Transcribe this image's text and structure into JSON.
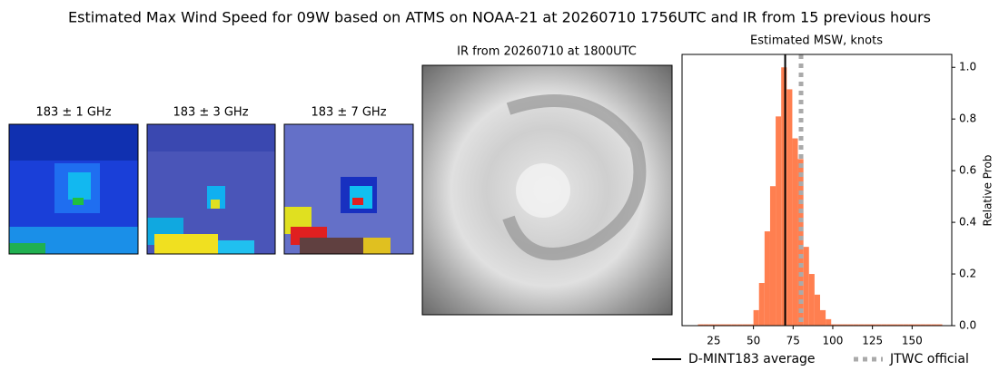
{
  "title": "Estimated Max Wind Speed for 09W based on ATMS on NOAA-21 at 20260710 1756UTC and IR from 15 previous hours",
  "panels": [
    {
      "title": "183 ± 1 GHz"
    },
    {
      "title": "183 ± 3 GHz"
    },
    {
      "title": "183 ± 7 GHz"
    }
  ],
  "ir_title": "IR from 20260710 at 1800UTC",
  "chart_data": {
    "type": "histogram",
    "title": "Estimated MSW, knots",
    "ylabel": "Relative Prob",
    "color": "#ff7f50",
    "bins": [
      15,
      18.5,
      22,
      25.5,
      29,
      32.5,
      36,
      39.5,
      43,
      46.5,
      50,
      53.5,
      57,
      60.5,
      64,
      67.5,
      71,
      74.5,
      78,
      81.5,
      85,
      88.5,
      92,
      95.5,
      99,
      102.5,
      106,
      109.5,
      113,
      116.5,
      120,
      123.5,
      127,
      130.5,
      134,
      137.5,
      141,
      144.5,
      148,
      151.5,
      155,
      158.5,
      162,
      165.5,
      169
    ],
    "values": [
      0.005,
      0.005,
      0.005,
      0.005,
      0.005,
      0.005,
      0.005,
      0.005,
      0.005,
      0.005,
      0.06,
      0.165,
      0.365,
      0.54,
      0.81,
      1.0,
      0.915,
      0.725,
      0.645,
      0.305,
      0.2,
      0.12,
      0.06,
      0.025,
      0.005,
      0.005,
      0.005,
      0.005,
      0.005,
      0.005,
      0.005,
      0.005,
      0.005,
      0.005,
      0.005,
      0.005,
      0.005,
      0.005,
      0.005,
      0.005,
      0.005,
      0.005,
      0.005,
      0.005
    ],
    "xlim": [
      5,
      175
    ],
    "xticks": [
      25,
      50,
      75,
      100,
      125,
      150
    ],
    "ylim": [
      0,
      1.05
    ],
    "yticks": [
      {
        "value": 0,
        "label": "0.0"
      },
      0.2,
      0.4,
      0.6,
      0.8,
      {
        "value": 1,
        "label": "1.0"
      }
    ],
    "lines": [
      {
        "name": "D-MINT183 average",
        "value": 70,
        "color": "#000000",
        "style": "solid"
      },
      {
        "name": "JTWC official",
        "value": 80,
        "color": "#aaaaaa",
        "style": "dotted"
      }
    ]
  }
}
